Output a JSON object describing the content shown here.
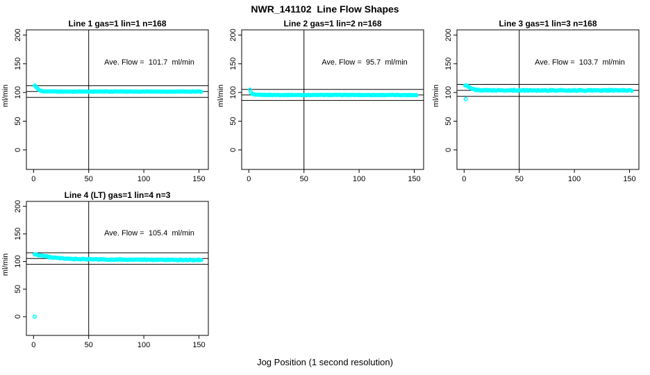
{
  "title": "NWR_141102  Line Flow Shapes",
  "xlabel": "Jog Position (1 second resolution)",
  "marker_color": "#00FFFF",
  "line_color": "#000000",
  "chart_data": [
    {
      "type": "scatter",
      "title": "Line 1 gas=1 lin=1 n=168",
      "annotation": "Ave. Flow =  101.7  ml/min",
      "ave_flow": 101.7,
      "ylabel": "ml/min",
      "xticks": [
        0,
        50,
        100,
        150
      ],
      "yticks": [
        0,
        50,
        100,
        150,
        200
      ],
      "xlim": [
        -6.5,
        158.5
      ],
      "ylim": [
        -34,
        209
      ],
      "vline_x": 50,
      "hlines": [
        91.5,
        101.7,
        111.9
      ],
      "marker": "open-circle",
      "marker_color": "#00FFFF",
      "x_step": 1,
      "x_end": 152,
      "jitter": 0.45,
      "series_anchors": [
        [
          1,
          112.3
        ],
        [
          2,
          110.2
        ],
        [
          3,
          107.8
        ],
        [
          4,
          105.8
        ],
        [
          5,
          104.4
        ],
        [
          6,
          103.4
        ],
        [
          7,
          102.8
        ],
        [
          8,
          102.4
        ],
        [
          10,
          102.0
        ],
        [
          14,
          101.8
        ],
        [
          20,
          101.7
        ],
        [
          50,
          101.6
        ],
        [
          100,
          101.6
        ],
        [
          152,
          101.6
        ]
      ],
      "outliers": []
    },
    {
      "type": "scatter",
      "title": "Line 2 gas=1 lin=2 n=168",
      "annotation": "Ave. Flow =  95.7  ml/min",
      "ave_flow": 95.7,
      "ylabel": "ml/min",
      "xticks": [
        0,
        50,
        100,
        150
      ],
      "yticks": [
        0,
        50,
        100,
        150,
        200
      ],
      "xlim": [
        -6.5,
        158.5
      ],
      "ylim": [
        -34,
        209
      ],
      "vline_x": 50,
      "hlines": [
        86.1,
        95.7,
        105.3
      ],
      "marker": "open-circle",
      "marker_color": "#00FFFF",
      "x_step": 1,
      "x_end": 152,
      "jitter": 0.45,
      "series_anchors": [
        [
          1,
          105.2
        ],
        [
          2,
          99.8
        ],
        [
          3,
          97.6
        ],
        [
          4,
          96.6
        ],
        [
          5,
          96.2
        ],
        [
          6,
          95.9
        ],
        [
          10,
          95.8
        ],
        [
          20,
          95.7
        ],
        [
          50,
          95.6
        ],
        [
          100,
          95.6
        ],
        [
          152,
          95.5
        ]
      ],
      "outliers": []
    },
    {
      "type": "scatter",
      "title": "Line 3 gas=1 lin=3 n=168",
      "annotation": "Ave. Flow =  103.7  ml/min",
      "ave_flow": 103.7,
      "ylabel": "ml/min",
      "xticks": [
        0,
        50,
        100,
        150
      ],
      "yticks": [
        0,
        50,
        100,
        150,
        200
      ],
      "xlim": [
        -6.5,
        158.5
      ],
      "ylim": [
        -34,
        209
      ],
      "vline_x": 50,
      "hlines": [
        93.3,
        103.7,
        114.1
      ],
      "marker": "open-circle",
      "marker_color": "#00FFFF",
      "x_step": 1,
      "x_end": 152,
      "jitter": 0.85,
      "series_anchors": [
        [
          1,
          112.2
        ],
        [
          2,
          112.0
        ],
        [
          3,
          111.2
        ],
        [
          4,
          109.8
        ],
        [
          5,
          108.3
        ],
        [
          6,
          107.2
        ],
        [
          7,
          106.3
        ],
        [
          8,
          105.7
        ],
        [
          10,
          104.9
        ],
        [
          12,
          104.4
        ],
        [
          15,
          104.0
        ],
        [
          20,
          103.8
        ],
        [
          30,
          103.7
        ],
        [
          152,
          103.6
        ]
      ],
      "outliers": [
        [
          1.5,
          88.5
        ]
      ]
    },
    {
      "type": "scatter",
      "title": "Line 4 (LT) gas=1 lin=4 n=3",
      "annotation": "Ave. Flow =  105.4  ml/min",
      "ave_flow": 105.4,
      "ylabel": "ml/min",
      "xticks": [
        0,
        50,
        100,
        150
      ],
      "yticks": [
        0,
        50,
        100,
        150,
        200
      ],
      "xlim": [
        -6.5,
        158.5
      ],
      "ylim": [
        -34,
        209
      ],
      "vline_x": 50,
      "hlines": [
        94.9,
        105.4,
        115.9
      ],
      "marker": "open-circle",
      "marker_color": "#00FFFF",
      "x_step": 1,
      "x_end": 152,
      "jitter": 0.8,
      "series_anchors": [
        [
          1,
          113.2
        ],
        [
          2,
          112.8
        ],
        [
          3,
          112.3
        ],
        [
          5,
          111.6
        ],
        [
          8,
          110.6
        ],
        [
          11,
          109.4
        ],
        [
          14,
          108.2
        ],
        [
          17,
          107.2
        ],
        [
          20,
          106.5
        ],
        [
          24,
          105.8
        ],
        [
          28,
          105.3
        ],
        [
          33,
          104.8
        ],
        [
          40,
          104.4
        ],
        [
          50,
          104.1
        ],
        [
          65,
          103.7
        ],
        [
          80,
          103.4
        ],
        [
          100,
          103.2
        ],
        [
          120,
          103.0
        ],
        [
          152,
          102.8
        ]
      ],
      "outliers": [
        [
          1,
          0
        ]
      ]
    }
  ]
}
